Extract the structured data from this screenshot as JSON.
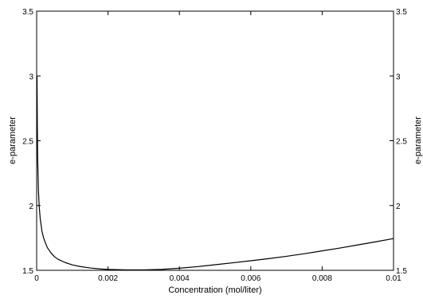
{
  "chart_data": {
    "type": "line",
    "title": "",
    "xlabel": "Concentration (mol/liter)",
    "ylabel": "e-parameter",
    "ylabel_right": "e-parameter",
    "xlim": [
      0,
      0.01
    ],
    "ylim": [
      1.5,
      3.5
    ],
    "x_ticks": [
      0,
      0.002,
      0.004,
      0.006,
      0.008,
      0.01
    ],
    "x_tick_labels": [
      "0",
      "0.002",
      "0.004",
      "0.006",
      "0.008",
      "0.01"
    ],
    "y_ticks": [
      1.5,
      2,
      2.5,
      3,
      3.5
    ],
    "y_tick_labels": [
      "1.5",
      "2",
      "2.5",
      "3",
      "3.5"
    ],
    "grid": false,
    "legend": "none",
    "series": [
      {
        "color": "#000000",
        "x": [
          1e-05,
          2e-05,
          3e-05,
          5e-05,
          7e-05,
          0.0001,
          0.00015,
          0.0002,
          0.0003,
          0.0004,
          0.0005,
          0.0006,
          0.0008,
          0.001,
          0.0012,
          0.0015,
          0.0018,
          0.002,
          0.0025,
          0.003,
          0.0035,
          0.004,
          0.0045,
          0.005,
          0.0055,
          0.006,
          0.0065,
          0.007,
          0.0075,
          0.008,
          0.0085,
          0.009,
          0.0095,
          0.01
        ],
        "y": [
          3.0,
          2.6,
          2.35,
          2.12,
          2.0,
          1.9,
          1.8,
          1.745,
          1.675,
          1.635,
          1.605,
          1.585,
          1.56,
          1.542,
          1.53,
          1.518,
          1.51,
          1.507,
          1.503,
          1.503,
          1.507,
          1.516,
          1.528,
          1.543,
          1.558,
          1.574,
          1.59,
          1.608,
          1.628,
          1.65,
          1.672,
          1.696,
          1.72,
          1.745
        ]
      }
    ]
  }
}
